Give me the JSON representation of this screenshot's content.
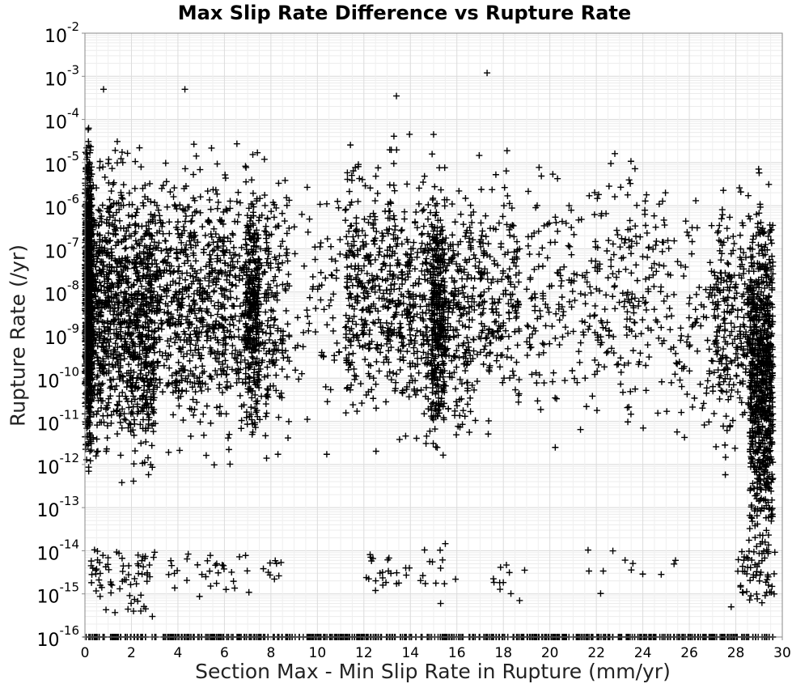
{
  "chart_data": {
    "type": "scatter",
    "title": "Max Slip Rate Difference vs Rupture Rate",
    "xlabel": "Section Max - Min Slip Rate in Rupture (mm/yr)",
    "ylabel": "Rupture Rate (/yr)",
    "x_scale": "linear",
    "y_scale": "log",
    "xlim": [
      0,
      30
    ],
    "ylim": [
      1e-16,
      0.01
    ],
    "x_ticks": [
      "0",
      "2",
      "4",
      "6",
      "8",
      "10",
      "12",
      "14",
      "16",
      "18",
      "20",
      "22",
      "24",
      "26",
      "28",
      "30"
    ],
    "y_ticks": [
      {
        "base": "10",
        "exp": "-16",
        "value": 1e-16
      },
      {
        "base": "10",
        "exp": "-15",
        "value": 1e-15
      },
      {
        "base": "10",
        "exp": "-14",
        "value": 1e-14
      },
      {
        "base": "10",
        "exp": "-13",
        "value": 1e-13
      },
      {
        "base": "10",
        "exp": "-12",
        "value": 1e-12
      },
      {
        "base": "10",
        "exp": "-11",
        "value": 1e-11
      },
      {
        "base": "10",
        "exp": "-10",
        "value": 1e-10
      },
      {
        "base": "10",
        "exp": "-9",
        "value": 1e-09
      },
      {
        "base": "10",
        "exp": "-8",
        "value": 1e-08
      },
      {
        "base": "10",
        "exp": "-7",
        "value": 1e-07
      },
      {
        "base": "10",
        "exp": "-6",
        "value": 1e-06
      },
      {
        "base": "10",
        "exp": "-5",
        "value": 1e-05
      },
      {
        "base": "10",
        "exp": "-4",
        "value": 0.0001
      },
      {
        "base": "10",
        "exp": "-3",
        "value": 0.001
      },
      {
        "base": "10",
        "exp": "-2",
        "value": 0.01
      }
    ],
    "grid": true,
    "marker": "plus",
    "marker_color": "#000000",
    "clusters": [
      {
        "x": [
          0.0,
          0.3
        ],
        "log10y": [
          -12.8,
          -3.6
        ],
        "n": 900
      },
      {
        "x": [
          0.3,
          2.4
        ],
        "log10y": [
          -13.0,
          -3.8
        ],
        "n": 750
      },
      {
        "x": [
          2.4,
          3.0
        ],
        "log10y": [
          -13.3,
          -4.2
        ],
        "n": 260
      },
      {
        "x": [
          3.0,
          7.9
        ],
        "log10y": [
          -12.6,
          -4.0
        ],
        "n": 900
      },
      {
        "x": [
          6.9,
          7.5
        ],
        "log10y": [
          -12.0,
          -4.6
        ],
        "n": 220
      },
      {
        "x": [
          7.8,
          8.8
        ],
        "log10y": [
          -12.5,
          -4.4
        ],
        "n": 120
      },
      {
        "x": [
          9.0,
          11.0
        ],
        "log10y": [
          -12.0,
          -4.2
        ],
        "n": 70
      },
      {
        "x": [
          11.2,
          13.5
        ],
        "log10y": [
          -12.0,
          -3.9
        ],
        "n": 380
      },
      {
        "x": [
          13.5,
          16.6
        ],
        "log10y": [
          -12.5,
          -4.2
        ],
        "n": 520
      },
      {
        "x": [
          14.9,
          15.5
        ],
        "log10y": [
          -12.4,
          -4.4
        ],
        "n": 240
      },
      {
        "x": [
          16.6,
          18.7
        ],
        "log10y": [
          -12.0,
          -4.3
        ],
        "n": 230
      },
      {
        "x": [
          19.0,
          22.0
        ],
        "log10y": [
          -12.0,
          -4.4
        ],
        "n": 160
      },
      {
        "x": [
          22.0,
          25.0
        ],
        "log10y": [
          -12.0,
          -4.0
        ],
        "n": 190
      },
      {
        "x": [
          25.0,
          27.0
        ],
        "log10y": [
          -12.5,
          -4.8
        ],
        "n": 90
      },
      {
        "x": [
          27.0,
          28.6
        ],
        "log10y": [
          -12.5,
          -4.8
        ],
        "n": 250
      },
      {
        "x": [
          28.6,
          29.6
        ],
        "log10y": [
          -15.2,
          -4.6
        ],
        "n": 800
      },
      {
        "x": [
          0.2,
          3.0
        ],
        "log10y": [
          -15.7,
          -13.6
        ],
        "n": 70
      },
      {
        "x": [
          3.5,
          9.0
        ],
        "log10y": [
          -15.2,
          -13.7
        ],
        "n": 40
      },
      {
        "x": [
          12.0,
          16.0
        ],
        "log10y": [
          -15.3,
          -13.6
        ],
        "n": 35
      },
      {
        "x": [
          17.0,
          19.0
        ],
        "log10y": [
          -15.3,
          -14.0
        ],
        "n": 10
      },
      {
        "x": [
          21.0,
          27.0
        ],
        "log10y": [
          -15.3,
          -13.6
        ],
        "n": 12
      },
      {
        "x": [
          28.0,
          29.7
        ],
        "log10y": [
          -15.8,
          -13.0
        ],
        "n": 60
      },
      {
        "x": [
          0.0,
          29.6
        ],
        "log10y": [
          -16.0,
          -16.0
        ],
        "n": 600
      }
    ],
    "outliers": [
      {
        "x": 17.3,
        "y": 0.0012
      },
      {
        "x": 0.8,
        "y": 0.0005
      },
      {
        "x": 4.3,
        "y": 0.0005
      },
      {
        "x": 13.4,
        "y": 0.00035
      },
      {
        "x": 2.9,
        "y": 3e-16
      },
      {
        "x": 5.2,
        "y": 2.5e-15
      },
      {
        "x": 12.5,
        "y": 1.2e-15
      },
      {
        "x": 18.7,
        "y": 7e-16
      },
      {
        "x": 27.8,
        "y": 5e-16
      },
      {
        "x": 15.3,
        "y": 6e-16
      }
    ]
  }
}
